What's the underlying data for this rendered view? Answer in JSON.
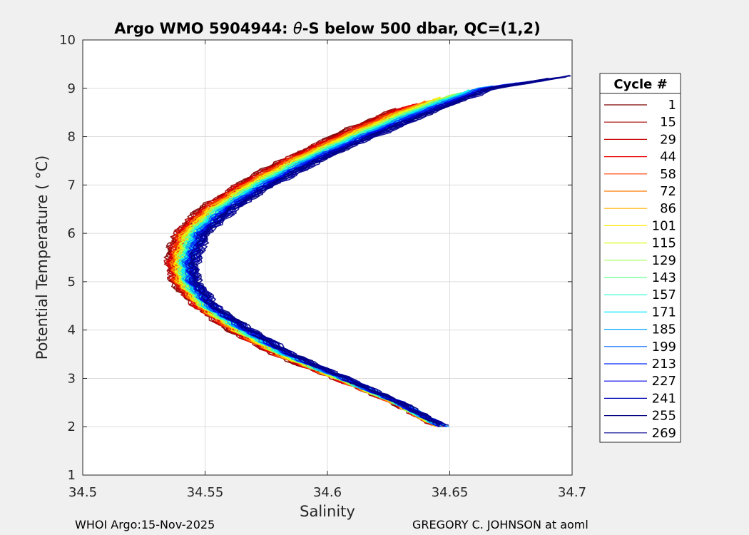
{
  "chart_data": {
    "type": "line",
    "title": "Argo WMO 5904944: θ-S below 500 dbar,  QC=(1,2)",
    "title_parts": {
      "prefix": "Argo WMO 5904944: ",
      "symbol": "θ",
      "suffix": "-S below 500 dbar,  QC=(1,2)"
    },
    "xlabel": "Salinity",
    "ylabel": "Potential Temperature ( °C)",
    "xlim": [
      34.5,
      34.7
    ],
    "ylim": [
      1,
      10
    ],
    "x_ticks": [
      "34.5",
      "34.55",
      "34.6",
      "34.65",
      "34.7"
    ],
    "y_ticks": [
      "1",
      "2",
      "3",
      "4",
      "5",
      "6",
      "7",
      "8",
      "9",
      "10"
    ],
    "grid": true,
    "legend": {
      "title": "Cycle #",
      "placement": "right",
      "entries": [
        {
          "label": "1",
          "color": "#7f0000"
        },
        {
          "label": "15",
          "color": "#a50000"
        },
        {
          "label": "29",
          "color": "#c80000"
        },
        {
          "label": "44",
          "color": "#ee0000"
        },
        {
          "label": "58",
          "color": "#ff3b00"
        },
        {
          "label": "72",
          "color": "#ff7a00"
        },
        {
          "label": "86",
          "color": "#ffb400"
        },
        {
          "label": "101",
          "color": "#ffea00"
        },
        {
          "label": "115",
          "color": "#d9ff1e"
        },
        {
          "label": "129",
          "color": "#9eff59"
        },
        {
          "label": "143",
          "color": "#64ff94"
        },
        {
          "label": "157",
          "color": "#2bffcd"
        },
        {
          "label": "171",
          "color": "#00e6ff"
        },
        {
          "label": "185",
          "color": "#00a6ff"
        },
        {
          "label": "199",
          "color": "#0066ff"
        },
        {
          "label": "213",
          "color": "#0026ff"
        },
        {
          "label": "227",
          "color": "#0000e8"
        },
        {
          "label": "241",
          "color": "#0000b4"
        },
        {
          "label": "255",
          "color": "#000080"
        },
        {
          "label": "269",
          "color": "#00008f"
        }
      ]
    },
    "series_shape": {
      "description": "Each cycle profile follows a C-shaped θ-S curve; salinity minimum near θ≈5.3 °C",
      "theta": [
        2.0,
        2.5,
        3.0,
        3.5,
        4.0,
        4.5,
        5.0,
        5.4,
        6.0,
        6.5,
        7.0,
        7.5,
        8.0,
        8.5,
        9.0,
        9.27
      ],
      "salinity_early": [
        34.645,
        34.627,
        34.603,
        34.578,
        34.56,
        34.546,
        34.537,
        34.535,
        34.538,
        34.548,
        34.563,
        34.581,
        34.602,
        34.624,
        34.652,
        34.7
      ],
      "salinity_late": [
        34.648,
        34.63,
        34.608,
        34.586,
        34.569,
        34.554,
        34.547,
        34.546,
        34.551,
        34.562,
        34.578,
        34.597,
        34.619,
        34.643,
        34.668,
        34.7
      ]
    }
  },
  "footer": {
    "left": "WHOI Argo:15-Nov-2025",
    "right": "GREGORY C. JOHNSON at aoml"
  }
}
